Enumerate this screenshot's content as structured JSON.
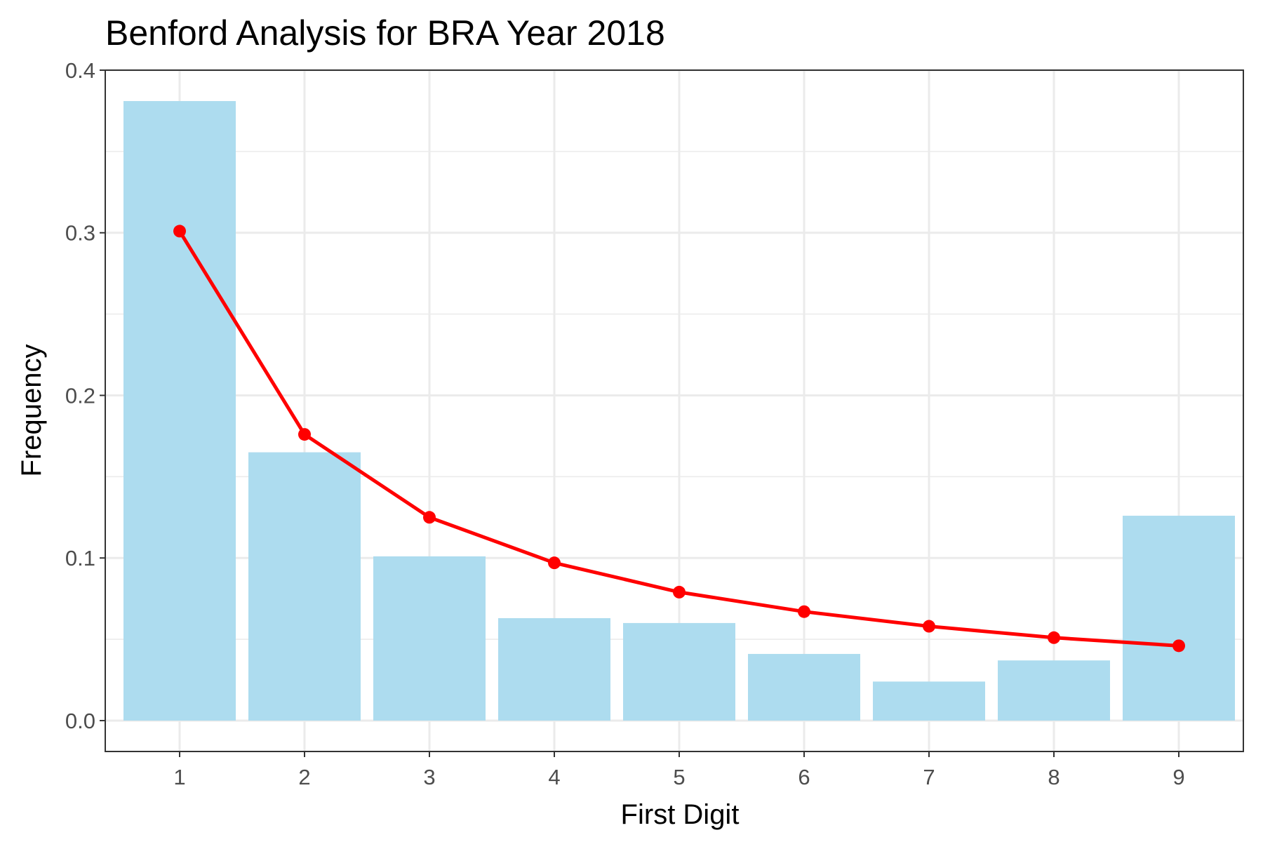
{
  "chart_data": {
    "type": "bar",
    "title": "Benford Analysis for BRA Year 2018",
    "xlabel": "First Digit",
    "ylabel": "Frequency",
    "categories": [
      "1",
      "2",
      "3",
      "4",
      "5",
      "6",
      "7",
      "8",
      "9"
    ],
    "ylim": [
      -0.019,
      0.4
    ],
    "y_ticks": [
      "0.0",
      "0.1",
      "0.2",
      "0.3",
      "0.4"
    ],
    "y_tick_values": [
      0.0,
      0.1,
      0.2,
      0.3,
      0.4
    ],
    "grid": true,
    "legend": "none",
    "series": [
      {
        "kind": "bar",
        "values": [
          0.381,
          0.165,
          0.101,
          0.063,
          0.06,
          0.041,
          0.024,
          0.037,
          0.126
        ]
      },
      {
        "kind": "line",
        "values": [
          0.301,
          0.176,
          0.125,
          0.097,
          0.079,
          0.067,
          0.058,
          0.051,
          0.046
        ]
      }
    ],
    "colors": {
      "bar": "#ADDCEF",
      "line": "#FF0000",
      "grid": "#EBEBEB",
      "panel_border": "#333333",
      "tick_label": "#4D4D4D"
    }
  }
}
